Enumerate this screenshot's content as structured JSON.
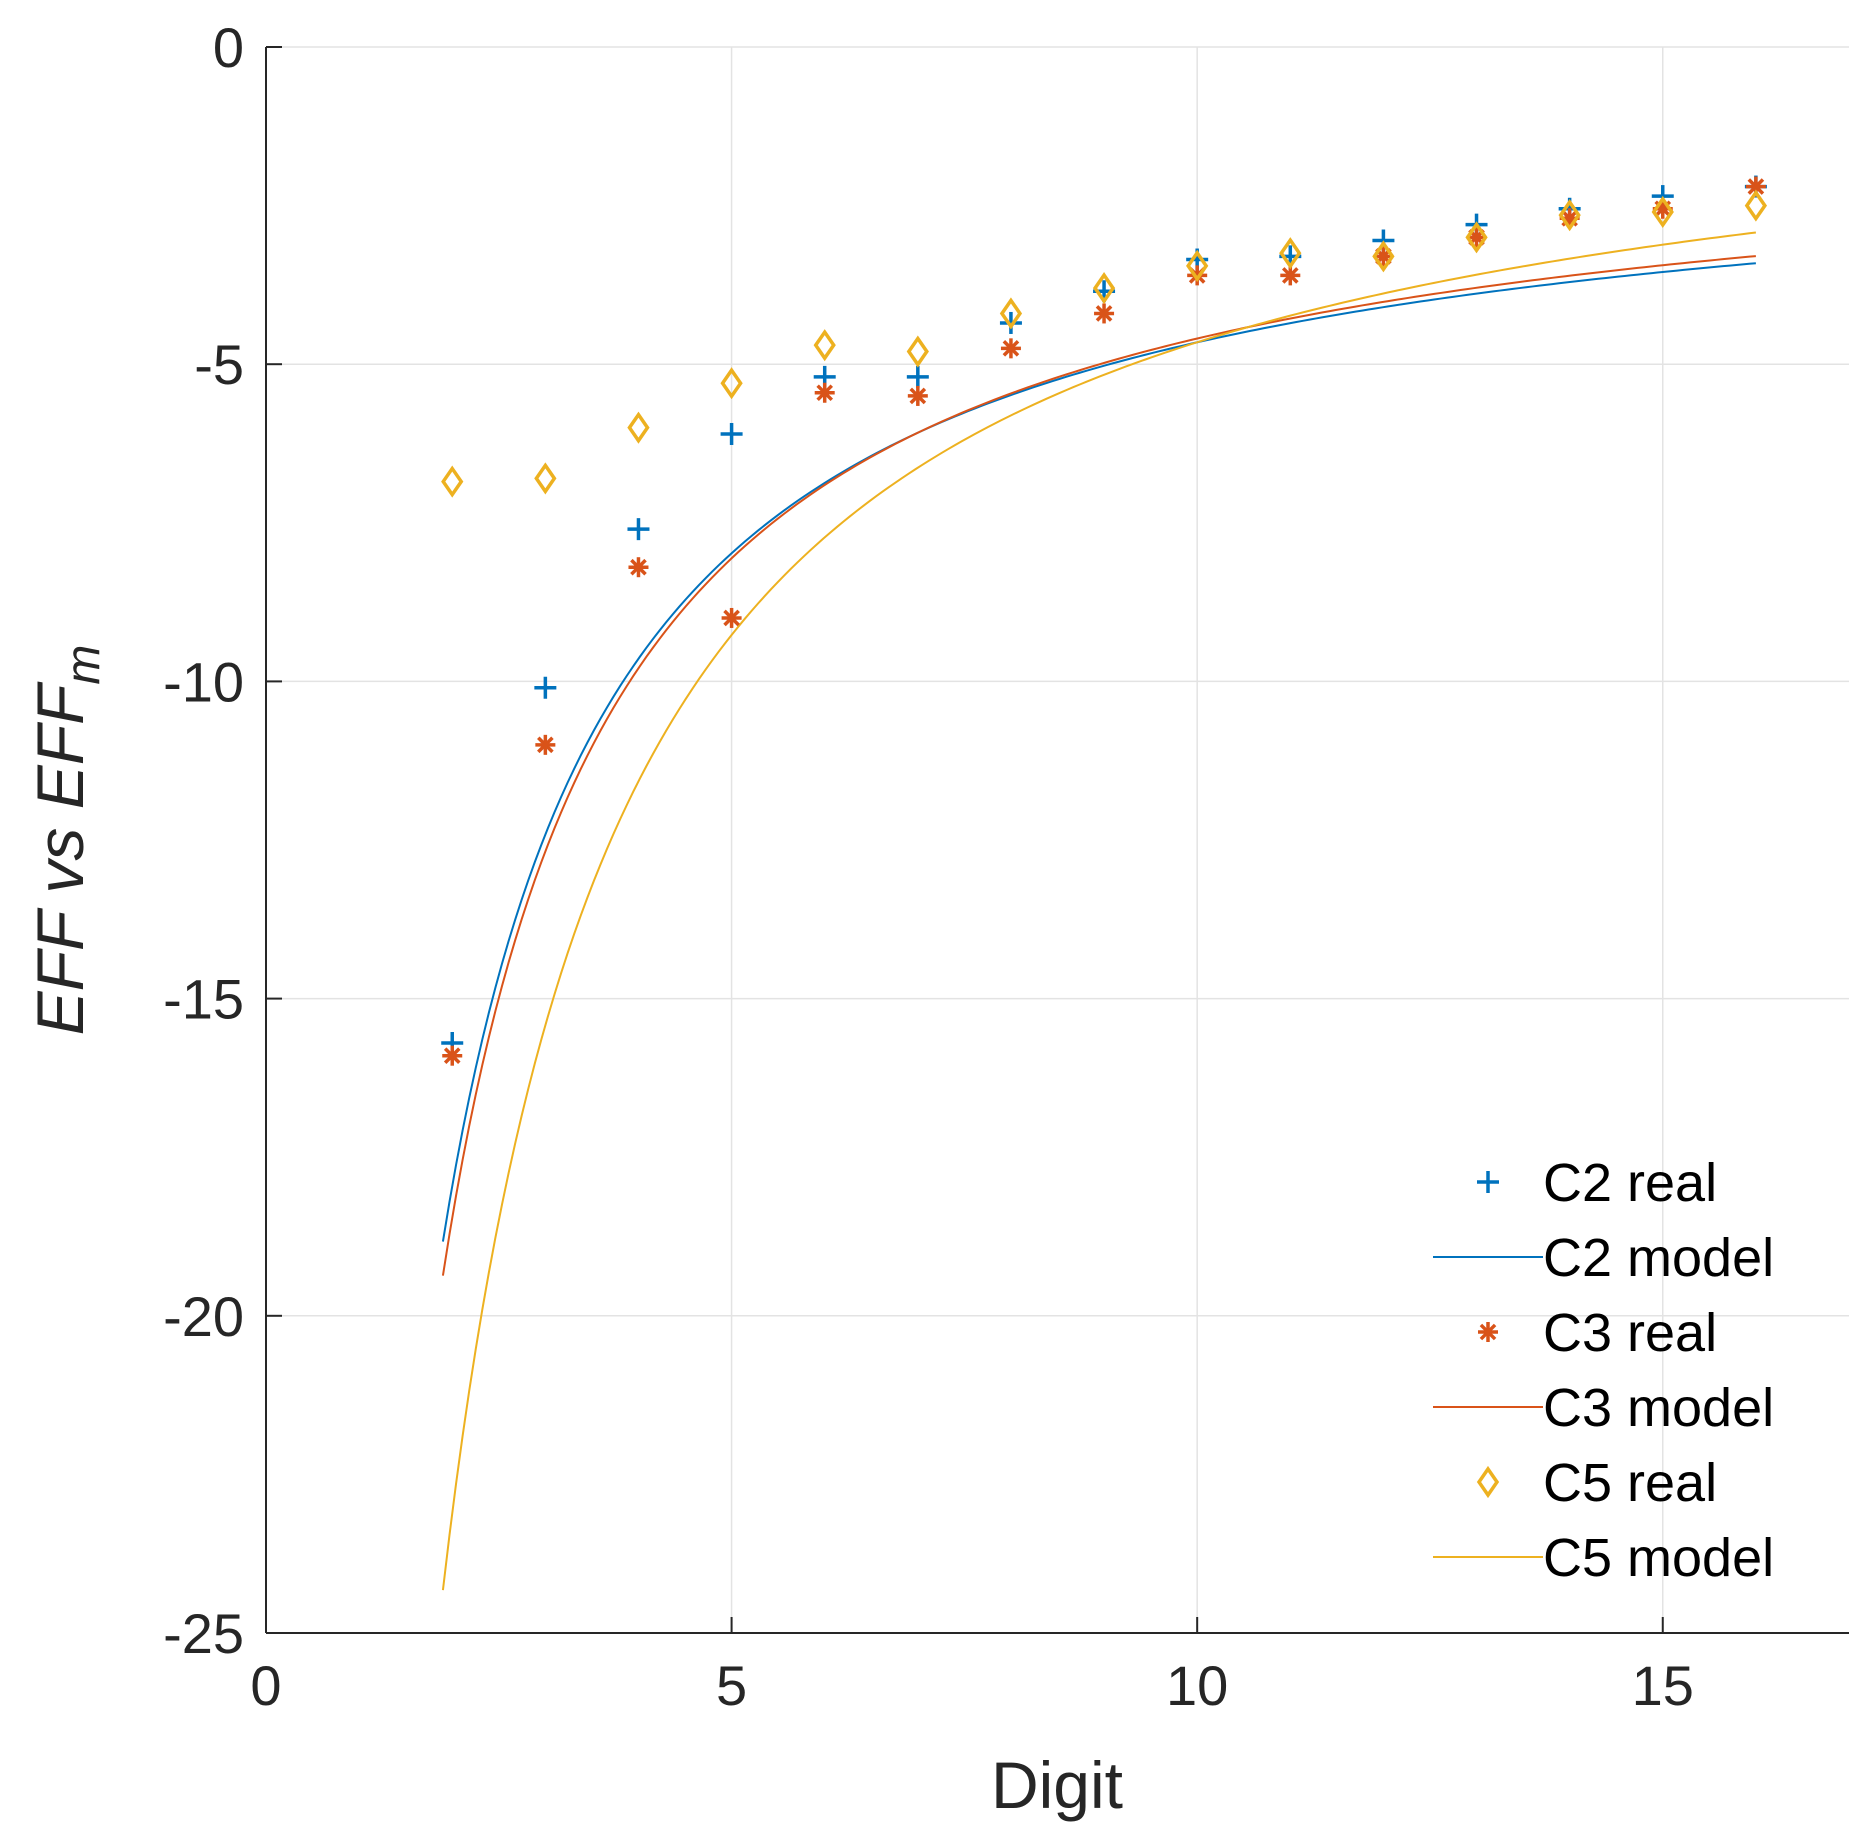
{
  "chart_data": {
    "type": "scatter",
    "title": "",
    "xlabel": "Digit",
    "ylabel": {
      "main": "EFF vs EFF",
      "subscript": "m"
    },
    "xlim": [
      0,
      17
    ],
    "ylim": [
      -25,
      0
    ],
    "xticks": [
      0,
      5,
      10,
      15
    ],
    "yticks": [
      0,
      -5,
      -10,
      -15,
      -20,
      -25
    ],
    "xtick_labels": [
      "0",
      "5",
      "10",
      "15"
    ],
    "ytick_labels": [
      "0",
      "-5",
      "-10",
      "-15",
      "-20",
      "-25"
    ],
    "grid": true,
    "legend_position": "bottom-right",
    "model": {
      "x_start": 1.9,
      "x_end": 16
    },
    "series": [
      {
        "name": "C2 real",
        "kind": "scatter",
        "marker": "plus",
        "color": "#0072BD",
        "x": [
          2,
          3,
          4,
          5,
          6,
          7,
          8,
          9,
          10,
          11,
          12,
          13,
          14,
          15,
          16
        ],
        "y": [
          -15.7,
          -10.1,
          -7.6,
          -6.1,
          -5.2,
          -5.2,
          -4.35,
          -3.85,
          -3.35,
          -3.3,
          -3.05,
          -2.8,
          -2.55,
          -2.35,
          -2.2
        ]
      },
      {
        "name": "C2 model",
        "kind": "line",
        "color": "#0072BD",
        "formula": "a + b / x",
        "a": -1.33,
        "b": -33.25
      },
      {
        "name": "C3 real",
        "kind": "scatter",
        "marker": "asterisk",
        "color": "#D95319",
        "x": [
          2,
          3,
          4,
          5,
          6,
          7,
          8,
          9,
          10,
          11,
          12,
          13,
          14,
          15,
          16
        ],
        "y": [
          -15.9,
          -11.0,
          -8.2,
          -9.0,
          -5.45,
          -5.5,
          -4.75,
          -4.2,
          -3.6,
          -3.6,
          -3.3,
          -3.0,
          -2.7,
          -2.55,
          -2.2
        ]
      },
      {
        "name": "C3 model",
        "kind": "line",
        "color": "#D95319",
        "formula": "a + b / x",
        "a": -1.13,
        "b": -34.65
      },
      {
        "name": "C5 real",
        "kind": "scatter",
        "marker": "diamond",
        "color": "#EDB120",
        "x": [
          2,
          3,
          4,
          5,
          6,
          7,
          8,
          9,
          10,
          11,
          12,
          13,
          14,
          15,
          16
        ],
        "y": [
          -6.85,
          -6.8,
          -6.0,
          -5.3,
          -4.7,
          -4.8,
          -4.2,
          -3.8,
          -3.45,
          -3.25,
          -3.3,
          -3.0,
          -2.65,
          -2.6,
          -2.5
        ]
      },
      {
        "name": "C5 model",
        "kind": "line",
        "color": "#EDB120",
        "formula": "a + b / x",
        "a": -0.04,
        "b": -46.14
      }
    ]
  }
}
